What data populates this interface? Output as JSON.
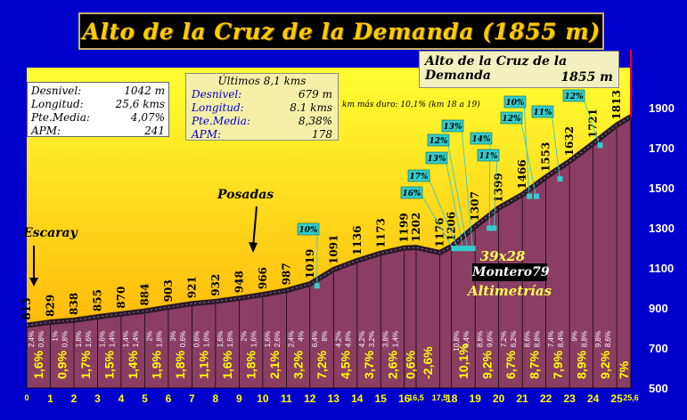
{
  "title": "Alto de la Cruz de la Demanda (1855 m)",
  "summit": {
    "name": "Alto de la Cruz de la Demanda",
    "elevation": "1855 m"
  },
  "stats_total": [
    {
      "label": "Desnivel:",
      "value": "1042 m"
    },
    {
      "label": "Longitud:",
      "value": "25,6 kms"
    },
    {
      "label": "Pte.Media:",
      "value": "4,07%"
    },
    {
      "label": "APM:",
      "value": "241"
    }
  ],
  "stats_last": {
    "heading": "Últimos 8,1 kms",
    "rows": [
      {
        "label": "Desnivel:",
        "value": "679 m"
      },
      {
        "label": "Longitud:",
        "value": "8.1 kms"
      },
      {
        "label": "Pte.Media:",
        "value": "8,38%"
      },
      {
        "label": "APM:",
        "value": "178"
      }
    ]
  },
  "note": "km más duro: 10,1% (km 18 a 19)",
  "credits": {
    "ratio": "39x28",
    "author": "Montero79",
    "tag": "Altimetrías"
  },
  "places": {
    "start": "Escaray",
    "mid": "Posadas"
  },
  "colors": {
    "background": "#0000cc",
    "sky_top": "#ffff33",
    "sky_bottom": "#ffaa00",
    "profile_fill": "#8b3d63",
    "profile_top": "#2a1a2a",
    "grade_label": "#ffff00",
    "callout": "#33cccc",
    "summit_line": "#ff0000"
  },
  "chart_data": {
    "type": "area",
    "xlim": [
      0,
      25.6
    ],
    "ylim": [
      500,
      2100
    ],
    "y_ticks": [
      500,
      700,
      900,
      1100,
      1300,
      1500,
      1700,
      1900
    ],
    "x_tick_labels": [
      {
        "x": 0,
        "label": "0",
        "size": "small"
      },
      {
        "x": 1,
        "label": "1",
        "size": "big"
      },
      {
        "x": 2,
        "label": "2",
        "size": "big"
      },
      {
        "x": 3,
        "label": "3",
        "size": "big"
      },
      {
        "x": 4,
        "label": "4",
        "size": "big"
      },
      {
        "x": 5,
        "label": "5",
        "size": "big"
      },
      {
        "x": 6,
        "label": "6",
        "size": "big"
      },
      {
        "x": 7,
        "label": "7",
        "size": "big"
      },
      {
        "x": 8,
        "label": "8",
        "size": "big"
      },
      {
        "x": 9,
        "label": "9",
        "size": "big"
      },
      {
        "x": 10,
        "label": "10",
        "size": "big"
      },
      {
        "x": 11,
        "label": "11",
        "size": "big"
      },
      {
        "x": 12,
        "label": "12",
        "size": "big"
      },
      {
        "x": 13,
        "label": "13",
        "size": "big"
      },
      {
        "x": 14,
        "label": "14",
        "size": "big"
      },
      {
        "x": 15,
        "label": "15",
        "size": "big"
      },
      {
        "x": 16,
        "label": "16",
        "size": "big"
      },
      {
        "x": 16.5,
        "label": "16,5",
        "size": "small"
      },
      {
        "x": 17.5,
        "label": "17,5",
        "size": "small"
      },
      {
        "x": 18,
        "label": "18",
        "size": "big"
      },
      {
        "x": 19,
        "label": "19",
        "size": "big"
      },
      {
        "x": 20,
        "label": "20",
        "size": "big"
      },
      {
        "x": 21,
        "label": "21",
        "size": "big"
      },
      {
        "x": 22,
        "label": "22",
        "size": "big"
      },
      {
        "x": 23,
        "label": "23",
        "size": "big"
      },
      {
        "x": 24,
        "label": "24",
        "size": "big"
      },
      {
        "x": 25,
        "label": "25",
        "size": "big"
      },
      {
        "x": 25.6,
        "label": "25,6",
        "size": "small"
      }
    ],
    "points": [
      {
        "x": 0,
        "y": 813
      },
      {
        "x": 1,
        "y": 829
      },
      {
        "x": 2,
        "y": 838
      },
      {
        "x": 3,
        "y": 855
      },
      {
        "x": 4,
        "y": 870
      },
      {
        "x": 5,
        "y": 884
      },
      {
        "x": 6,
        "y": 903
      },
      {
        "x": 7,
        "y": 921
      },
      {
        "x": 8,
        "y": 932
      },
      {
        "x": 9,
        "y": 948
      },
      {
        "x": 10,
        "y": 966
      },
      {
        "x": 11,
        "y": 987
      },
      {
        "x": 12,
        "y": 1019
      },
      {
        "x": 13,
        "y": 1091
      },
      {
        "x": 14,
        "y": 1136
      },
      {
        "x": 15,
        "y": 1173
      },
      {
        "x": 16,
        "y": 1199
      },
      {
        "x": 16.5,
        "y": 1202
      },
      {
        "x": 17.5,
        "y": 1176
      },
      {
        "x": 18,
        "y": 1206
      },
      {
        "x": 19,
        "y": 1307
      },
      {
        "x": 20,
        "y": 1399
      },
      {
        "x": 21,
        "y": 1466
      },
      {
        "x": 22,
        "y": 1553
      },
      {
        "x": 23,
        "y": 1632
      },
      {
        "x": 24,
        "y": 1721
      },
      {
        "x": 25,
        "y": 1813
      },
      {
        "x": 25.6,
        "y": 1855
      }
    ],
    "elevation_labels": [
      {
        "x": 0,
        "label": "813"
      },
      {
        "x": 1,
        "label": "829"
      },
      {
        "x": 2,
        "label": "838"
      },
      {
        "x": 3,
        "label": "855"
      },
      {
        "x": 4,
        "label": "870"
      },
      {
        "x": 5,
        "label": "884"
      },
      {
        "x": 6,
        "label": "903"
      },
      {
        "x": 7,
        "label": "921"
      },
      {
        "x": 8,
        "label": "932"
      },
      {
        "x": 9,
        "label": "948"
      },
      {
        "x": 10,
        "label": "966"
      },
      {
        "x": 11,
        "label": "987"
      },
      {
        "x": 12,
        "label": "1019"
      },
      {
        "x": 13,
        "label": "1091"
      },
      {
        "x": 14,
        "label": "1136"
      },
      {
        "x": 15,
        "label": "1173"
      },
      {
        "x": 16,
        "label": "1199"
      },
      {
        "x": 16.5,
        "label": "1202"
      },
      {
        "x": 17.5,
        "label": "1176"
      },
      {
        "x": 18,
        "label": "1206"
      },
      {
        "x": 19,
        "label": "1307"
      },
      {
        "x": 20,
        "label": "1399"
      },
      {
        "x": 21,
        "label": "1466"
      },
      {
        "x": 22,
        "label": "1553"
      },
      {
        "x": 23,
        "label": "1632"
      },
      {
        "x": 24,
        "label": "1721"
      },
      {
        "x": 25,
        "label": "1813"
      }
    ],
    "segment_grades": [
      {
        "x": 0.5,
        "label": "1,6%"
      },
      {
        "x": 1.5,
        "label": "0,9%"
      },
      {
        "x": 2.5,
        "label": "1,7%"
      },
      {
        "x": 3.5,
        "label": "1,5%"
      },
      {
        "x": 4.5,
        "label": "1,4%"
      },
      {
        "x": 5.5,
        "label": "1,9%"
      },
      {
        "x": 6.5,
        "label": "1,8%"
      },
      {
        "x": 7.5,
        "label": "1,1%"
      },
      {
        "x": 8.5,
        "label": "1,6%"
      },
      {
        "x": 9.5,
        "label": "1,8%"
      },
      {
        "x": 10.5,
        "label": "2,1%"
      },
      {
        "x": 11.5,
        "label": "3,2%"
      },
      {
        "x": 12.5,
        "label": "7,2%"
      },
      {
        "x": 13.5,
        "label": "4,5%"
      },
      {
        "x": 14.5,
        "label": "3,7%"
      },
      {
        "x": 15.5,
        "label": "2,6%"
      },
      {
        "x": 16.25,
        "label": "0,6%"
      },
      {
        "x": 17,
        "label": "-2,6%"
      },
      {
        "x": 18.5,
        "label": "10,1%"
      },
      {
        "x": 19.5,
        "label": "9,2%"
      },
      {
        "x": 20.5,
        "label": "6,7%"
      },
      {
        "x": 21.5,
        "label": "8,7%"
      },
      {
        "x": 22.5,
        "label": "7,9%"
      },
      {
        "x": 23.5,
        "label": "8,9%"
      },
      {
        "x": 24.5,
        "label": "9,2%"
      },
      {
        "x": 25.3,
        "label": "7%"
      }
    ],
    "sub_grades": [
      {
        "x": 0.5,
        "a": "2,4%",
        "b": "0,8%"
      },
      {
        "x": 1.5,
        "a": "1%",
        "b": "0,8%"
      },
      {
        "x": 2.5,
        "a": "1,8%",
        "b": "1,6%"
      },
      {
        "x": 3.5,
        "a": "1,6%",
        "b": "1,4%"
      },
      {
        "x": 4.5,
        "a": "1,4%",
        "b": "1,4%"
      },
      {
        "x": 5.5,
        "a": "2%",
        "b": "1,8%"
      },
      {
        "x": 6.5,
        "a": "3%",
        "b": "0,6%"
      },
      {
        "x": 7.5,
        "a": "0,6%",
        "b": "1,6%"
      },
      {
        "x": 8.5,
        "a": "1,6%",
        "b": "1,6%"
      },
      {
        "x": 9.5,
        "a": "2%",
        "b": "1,6%"
      },
      {
        "x": 10.5,
        "a": "1,6%",
        "b": "2,6%"
      },
      {
        "x": 11.5,
        "a": "2,4%",
        "b": "4%"
      },
      {
        "x": 12.5,
        "a": "6,4%",
        "b": "8%"
      },
      {
        "x": 13.5,
        "a": "4,2%",
        "b": "4,8%"
      },
      {
        "x": 14.5,
        "a": "4,2%",
        "b": "3,2%"
      },
      {
        "x": 15.5,
        "a": "3,8%",
        "b": "1,4%"
      },
      {
        "x": 18.5,
        "a": "10,8%",
        "b": "9,4%"
      },
      {
        "x": 19.5,
        "a": "8,8%",
        "b": "9,6%"
      },
      {
        "x": 20.5,
        "a": "7,2%",
        "b": "6,2%"
      },
      {
        "x": 21.5,
        "a": "8,6%",
        "b": "8,8%"
      },
      {
        "x": 22.5,
        "a": "7,4%",
        "b": "8,4%"
      },
      {
        "x": 23.5,
        "a": "9%",
        "b": "8,8%"
      },
      {
        "x": 24.5,
        "a": "9,8%",
        "b": "8,6%"
      }
    ],
    "steep_callouts": [
      {
        "label": "10%",
        "x": 12.3
      },
      {
        "label": "16%",
        "x": 18.1
      },
      {
        "label": "17%",
        "x": 18.3
      },
      {
        "label": "13%",
        "x": 18.5
      },
      {
        "label": "12%",
        "x": 18.7
      },
      {
        "label": "13%",
        "x": 18.9
      },
      {
        "label": "14%",
        "x": 19.6
      },
      {
        "label": "11%",
        "x": 19.8
      },
      {
        "label": "10%",
        "x": 21.3
      },
      {
        "label": "12%",
        "x": 21.6
      },
      {
        "label": "11%",
        "x": 22.6
      },
      {
        "label": "12%",
        "x": 24.3
      }
    ]
  }
}
